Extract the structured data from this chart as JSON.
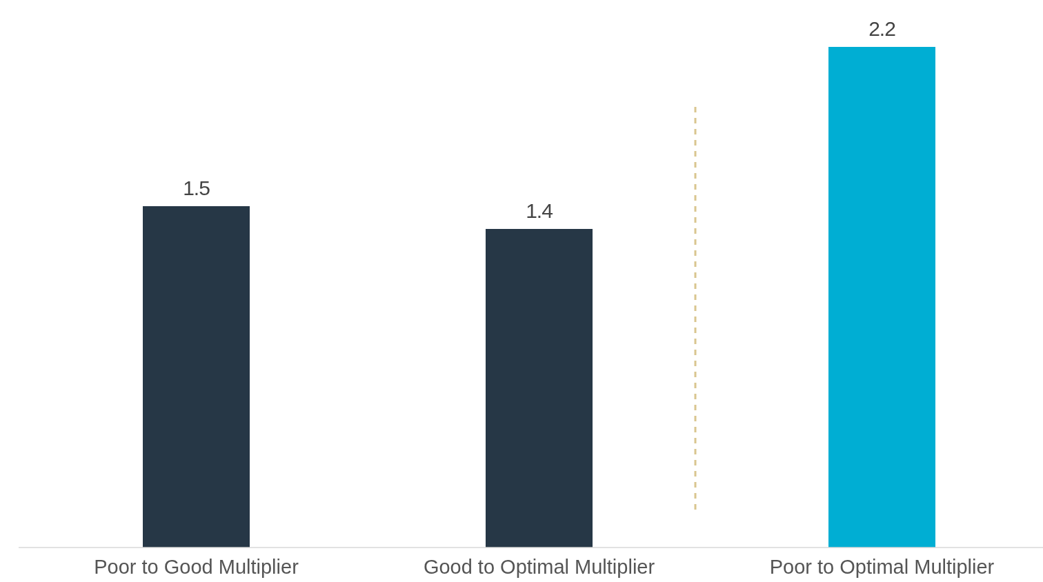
{
  "chart_data": {
    "type": "bar",
    "categories": [
      "Poor to Good Multiplier",
      "Good to Optimal Multiplier",
      "Poor to Optimal Multiplier"
    ],
    "values": [
      1.5,
      1.4,
      2.2
    ],
    "colors": [
      "#263746",
      "#263746",
      "#00aed3"
    ],
    "data_labels": true
  }
}
